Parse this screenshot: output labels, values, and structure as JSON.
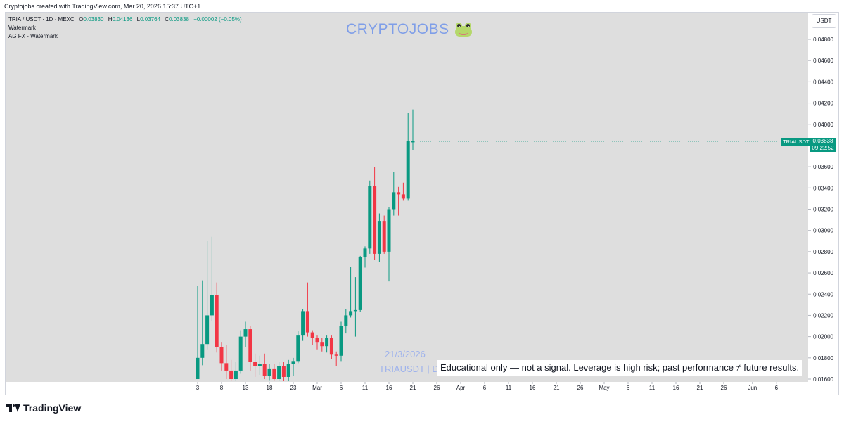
{
  "header": {
    "credit": "Cryptojobs created with TradingView.com, Mar 20, 2026 15:37 UTC+1"
  },
  "legend": {
    "symbol_line": "TRIA / USDT · 1D · MEXC",
    "open_label": "O",
    "open": "0.03830",
    "high_label": "H",
    "high": "0.04136",
    "low_label": "L",
    "low": "0.03764",
    "close_label": "C",
    "close": "0.03838",
    "change": "−0.00002 (−0.05%)",
    "indicator_1": "Watermark",
    "indicator_2": "AG FX - Watermark"
  },
  "watermark": {
    "title": "CRYPTOJOBS",
    "title_icon": "frog-icon",
    "date": "21/3/2026",
    "symbol": "TRIAUSDT | D"
  },
  "disclaimer": "Educational only — not a signal. Leverage is high risk; past performance ≠ future results.",
  "price_scale": {
    "currency": "USDT",
    "last_symbol": "TRIAUSDT",
    "last_price": "0.03838",
    "countdown": "09:22:52"
  },
  "footer": {
    "logo_text": "TradingView"
  },
  "colors": {
    "up": "#089981",
    "down": "#f23645",
    "background": "#dedede",
    "watermark": "#7f9ee8",
    "text": "#131722"
  },
  "chart_data": {
    "type": "candlestick",
    "symbol": "TRIA / USDT",
    "interval": "1D",
    "exchange": "MEXC",
    "ylim": [
      0.0158,
      0.05
    ],
    "yticks": [
      "0.04800",
      "0.04600",
      "0.04400",
      "0.04200",
      "0.04000",
      "0.03800",
      "0.03600",
      "0.03400",
      "0.03200",
      "0.03000",
      "0.02800",
      "0.02600",
      "0.02400",
      "0.02200",
      "0.02000",
      "0.01800",
      "0.01600"
    ],
    "xticks": [
      {
        "label": "3",
        "day": 0
      },
      {
        "label": "8",
        "day": 5
      },
      {
        "label": "13",
        "day": 10
      },
      {
        "label": "18",
        "day": 15
      },
      {
        "label": "23",
        "day": 20
      },
      {
        "label": "Mar",
        "day": 25
      },
      {
        "label": "6",
        "day": 30
      },
      {
        "label": "11",
        "day": 35
      },
      {
        "label": "16",
        "day": 40
      },
      {
        "label": "21",
        "day": 45
      },
      {
        "label": "26",
        "day": 50
      },
      {
        "label": "Apr",
        "day": 55
      },
      {
        "label": "6",
        "day": 60
      },
      {
        "label": "11",
        "day": 65
      },
      {
        "label": "16",
        "day": 70
      },
      {
        "label": "21",
        "day": 75
      },
      {
        "label": "26",
        "day": 80
      },
      {
        "label": "May",
        "day": 85
      },
      {
        "label": "6",
        "day": 90
      },
      {
        "label": "11",
        "day": 95
      },
      {
        "label": "16",
        "day": 100
      },
      {
        "label": "21",
        "day": 105
      },
      {
        "label": "26",
        "day": 110
      },
      {
        "label": "Jun",
        "day": 116
      },
      {
        "label": "6",
        "day": 121
      }
    ],
    "candles": [
      {
        "o": 0.016,
        "h": 0.0248,
        "l": 0.016,
        "c": 0.018
      },
      {
        "o": 0.018,
        "h": 0.0253,
        "l": 0.0173,
        "c": 0.0193
      },
      {
        "o": 0.0193,
        "h": 0.029,
        "l": 0.0188,
        "c": 0.022
      },
      {
        "o": 0.022,
        "h": 0.0294,
        "l": 0.0215,
        "c": 0.0239
      },
      {
        "o": 0.0239,
        "h": 0.0251,
        "l": 0.0185,
        "c": 0.019
      },
      {
        "o": 0.019,
        "h": 0.0195,
        "l": 0.0168,
        "c": 0.0175
      },
      {
        "o": 0.0175,
        "h": 0.0192,
        "l": 0.016,
        "c": 0.0168
      },
      {
        "o": 0.0168,
        "h": 0.0178,
        "l": 0.0158,
        "c": 0.016
      },
      {
        "o": 0.016,
        "h": 0.0176,
        "l": 0.0158,
        "c": 0.0168
      },
      {
        "o": 0.0168,
        "h": 0.0206,
        "l": 0.0165,
        "c": 0.02
      },
      {
        "o": 0.02,
        "h": 0.0214,
        "l": 0.019,
        "c": 0.0207
      },
      {
        "o": 0.0207,
        "h": 0.021,
        "l": 0.0168,
        "c": 0.0176
      },
      {
        "o": 0.0176,
        "h": 0.0184,
        "l": 0.0162,
        "c": 0.0172
      },
      {
        "o": 0.0172,
        "h": 0.0182,
        "l": 0.0164,
        "c": 0.0174
      },
      {
        "o": 0.0174,
        "h": 0.0184,
        "l": 0.016,
        "c": 0.0163
      },
      {
        "o": 0.0163,
        "h": 0.0174,
        "l": 0.0159,
        "c": 0.017
      },
      {
        "o": 0.017,
        "h": 0.0174,
        "l": 0.0159,
        "c": 0.016
      },
      {
        "o": 0.016,
        "h": 0.0176,
        "l": 0.0158,
        "c": 0.0172
      },
      {
        "o": 0.0172,
        "h": 0.0176,
        "l": 0.0158,
        "c": 0.0162
      },
      {
        "o": 0.0162,
        "h": 0.0178,
        "l": 0.0158,
        "c": 0.0174
      },
      {
        "o": 0.0174,
        "h": 0.018,
        "l": 0.0163,
        "c": 0.0177
      },
      {
        "o": 0.0177,
        "h": 0.0205,
        "l": 0.0175,
        "c": 0.0201
      },
      {
        "o": 0.0201,
        "h": 0.0226,
        "l": 0.0196,
        "c": 0.0224
      },
      {
        "o": 0.0224,
        "h": 0.0251,
        "l": 0.02,
        "c": 0.0204
      },
      {
        "o": 0.0204,
        "h": 0.0206,
        "l": 0.0192,
        "c": 0.0199
      },
      {
        "o": 0.0199,
        "h": 0.0201,
        "l": 0.0188,
        "c": 0.0195
      },
      {
        "o": 0.0195,
        "h": 0.0199,
        "l": 0.0186,
        "c": 0.0191
      },
      {
        "o": 0.0191,
        "h": 0.0201,
        "l": 0.0185,
        "c": 0.0199
      },
      {
        "o": 0.0199,
        "h": 0.0201,
        "l": 0.0179,
        "c": 0.0183
      },
      {
        "o": 0.0183,
        "h": 0.0186,
        "l": 0.0172,
        "c": 0.0182
      },
      {
        "o": 0.0182,
        "h": 0.0214,
        "l": 0.0177,
        "c": 0.021
      },
      {
        "o": 0.021,
        "h": 0.0226,
        "l": 0.0203,
        "c": 0.022
      },
      {
        "o": 0.022,
        "h": 0.0266,
        "l": 0.0218,
        "c": 0.0224
      },
      {
        "o": 0.0224,
        "h": 0.0256,
        "l": 0.02,
        "c": 0.0225
      },
      {
        "o": 0.0225,
        "h": 0.0276,
        "l": 0.0223,
        "c": 0.0275
      },
      {
        "o": 0.0275,
        "h": 0.0285,
        "l": 0.0265,
        "c": 0.0283
      },
      {
        "o": 0.0283,
        "h": 0.0347,
        "l": 0.0278,
        "c": 0.0342
      },
      {
        "o": 0.0342,
        "h": 0.036,
        "l": 0.0272,
        "c": 0.0278
      },
      {
        "o": 0.0278,
        "h": 0.0316,
        "l": 0.027,
        "c": 0.0309
      },
      {
        "o": 0.0309,
        "h": 0.0314,
        "l": 0.0278,
        "c": 0.028
      },
      {
        "o": 0.028,
        "h": 0.0322,
        "l": 0.0252,
        "c": 0.032
      },
      {
        "o": 0.032,
        "h": 0.0355,
        "l": 0.0314,
        "c": 0.0336
      },
      {
        "o": 0.0336,
        "h": 0.0341,
        "l": 0.0314,
        "c": 0.0334
      },
      {
        "o": 0.0334,
        "h": 0.0345,
        "l": 0.0328,
        "c": 0.033
      },
      {
        "o": 0.033,
        "h": 0.0411,
        "l": 0.0328,
        "c": 0.0384
      },
      {
        "o": 0.0383,
        "h": 0.0414,
        "l": 0.0376,
        "c": 0.0384
      }
    ]
  }
}
